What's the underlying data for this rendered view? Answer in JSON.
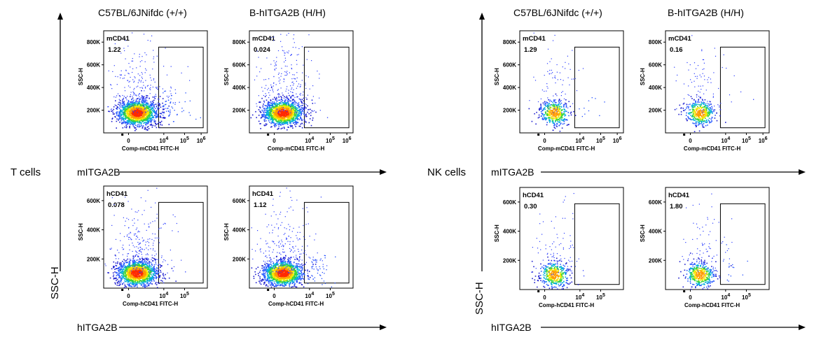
{
  "left_panel": {
    "cell_label": "T cells",
    "col_headers": [
      "C57BL/6JNifdc  (+/+)",
      "B-hITGA2B (H/H)"
    ],
    "row_markers": [
      "mITGA2B",
      "hITGA2B"
    ],
    "y_axis_label": "SSC-H"
  },
  "right_panel": {
    "cell_label": "NK cells",
    "col_headers": [
      "C57BL/6JNifdc  (+/+)",
      "B-hITGA2B (H/H)"
    ],
    "row_markers": [
      "mITGA2B",
      "hITGA2B"
    ],
    "y_axis_label": "SSC-H"
  },
  "chart_data": [
    {
      "type": "scatter",
      "cells": "T cells",
      "marker": "mITGA2B",
      "strain": "C57BL/6JNifdc  (+/+)",
      "gate_name": "mCD41",
      "gate_percent": "1.22",
      "xlabel": "Comp-mCD41 FITC-H",
      "ylabel": "SSC-H",
      "x_ticks": [
        "0",
        "10^4",
        "10^5",
        "10^6"
      ],
      "y_ticks": [
        "200K",
        "400K",
        "600K",
        "800K"
      ],
      "ylim": [
        0,
        900000
      ]
    },
    {
      "type": "scatter",
      "cells": "T cells",
      "marker": "mITGA2B",
      "strain": "B-hITGA2B (H/H)",
      "gate_name": "mCD41",
      "gate_percent": "0.024",
      "xlabel": "Comp-mCD41 FITC-H",
      "ylabel": "SSC-H",
      "x_ticks": [
        "0",
        "10^4",
        "10^5",
        "10^6"
      ],
      "y_ticks": [
        "200K",
        "400K",
        "600K",
        "800K"
      ],
      "ylim": [
        0,
        900000
      ]
    },
    {
      "type": "scatter",
      "cells": "T cells",
      "marker": "hITGA2B",
      "strain": "C57BL/6JNifdc  (+/+)",
      "gate_name": "hCD41",
      "gate_percent": "0.078",
      "xlabel": "Comp-hCD41 FITC-H",
      "ylabel": "SSC-H",
      "x_ticks": [
        "0",
        "10^4",
        "10^5"
      ],
      "y_ticks": [
        "200K",
        "400K",
        "600K"
      ],
      "ylim": [
        0,
        700000
      ]
    },
    {
      "type": "scatter",
      "cells": "T cells",
      "marker": "hITGA2B",
      "strain": "B-hITGA2B (H/H)",
      "gate_name": "hCD41",
      "gate_percent": "1.12",
      "xlabel": "Comp-hCD41 FITC-H",
      "ylabel": "SSC-H",
      "x_ticks": [
        "0",
        "10^4",
        "10^5"
      ],
      "y_ticks": [
        "200K",
        "400K",
        "600K"
      ],
      "ylim": [
        0,
        700000
      ]
    },
    {
      "type": "scatter",
      "cells": "NK cells",
      "marker": "mITGA2B",
      "strain": "C57BL/6JNifdc  (+/+)",
      "gate_name": "mCD41",
      "gate_percent": "1.29",
      "xlabel": "Comp-mCD41 FITC-H",
      "ylabel": "SSC-H",
      "x_ticks": [
        "0",
        "10^4",
        "10^5",
        "10^6"
      ],
      "y_ticks": [
        "200K",
        "400K",
        "600K",
        "800K"
      ],
      "ylim": [
        0,
        900000
      ]
    },
    {
      "type": "scatter",
      "cells": "NK cells",
      "marker": "mITGA2B",
      "strain": "B-hITGA2B (H/H)",
      "gate_name": "mCD41",
      "gate_percent": "0.16",
      "xlabel": "Comp-mCD41 FITC-H",
      "ylabel": "SSC-H",
      "x_ticks": [
        "0",
        "10^4",
        "10^5",
        "10^6"
      ],
      "y_ticks": [
        "200K",
        "400K",
        "600K",
        "800K"
      ],
      "ylim": [
        0,
        900000
      ]
    },
    {
      "type": "scatter",
      "cells": "NK cells",
      "marker": "hITGA2B",
      "strain": "C57BL/6JNifdc  (+/+)",
      "gate_name": "hCD41",
      "gate_percent": "0.30",
      "xlabel": "Comp-hCD41 FITC-H",
      "ylabel": "SSC-H",
      "x_ticks": [
        "0",
        "10^4",
        "10^5"
      ],
      "y_ticks": [
        "200K",
        "400K",
        "600K"
      ],
      "ylim": [
        0,
        700000
      ]
    },
    {
      "type": "scatter",
      "cells": "NK cells",
      "marker": "hITGA2B",
      "strain": "B-hITGA2B (H/H)",
      "gate_name": "hCD41",
      "gate_percent": "1.80",
      "xlabel": "Comp-hCD41 FITC-H",
      "ylabel": "SSC-H",
      "x_ticks": [
        "0",
        "10^4",
        "10^5"
      ],
      "y_ticks": [
        "200K",
        "400K",
        "600K"
      ],
      "ylim": [
        0,
        700000
      ]
    }
  ]
}
